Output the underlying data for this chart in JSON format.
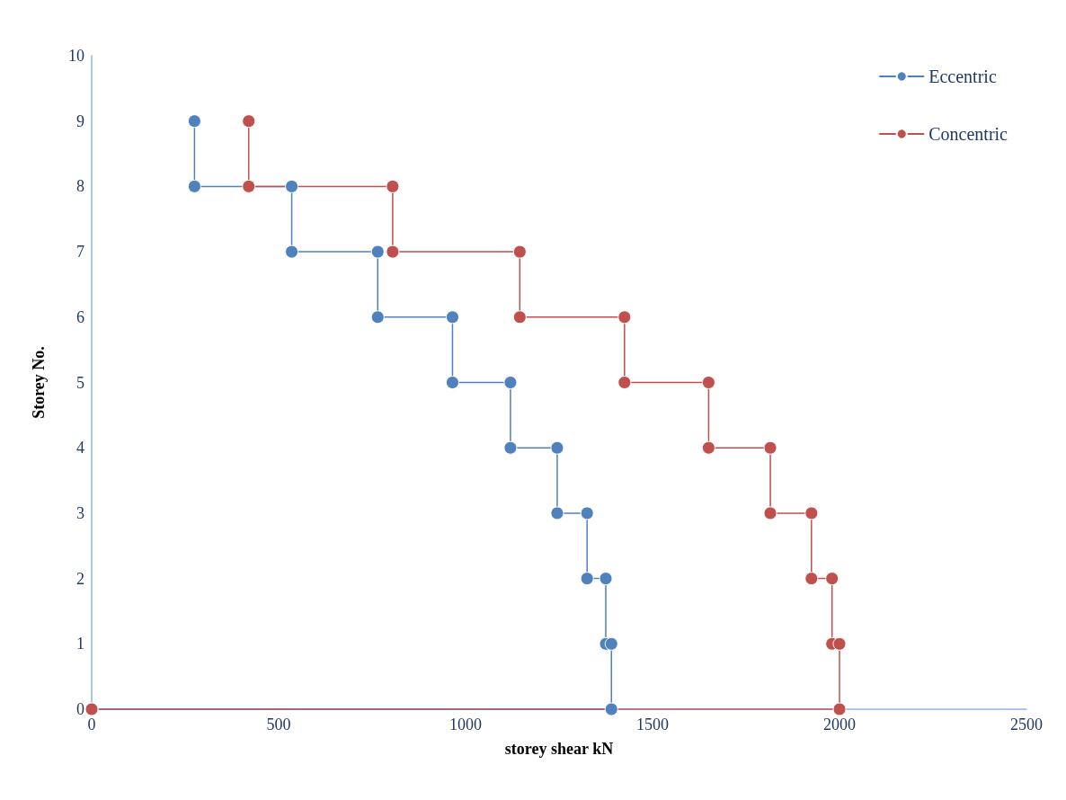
{
  "chart_data": {
    "type": "line",
    "xlabel": "storey shear kN",
    "ylabel": "Storey No.",
    "xlim": [
      0,
      2500
    ],
    "xticks": [
      0,
      500,
      1000,
      1500,
      2000,
      2500
    ],
    "ylim": [
      0,
      10
    ],
    "yticks": [
      0,
      1,
      2,
      3,
      4,
      5,
      6,
      7,
      8,
      9,
      10
    ],
    "grid": false,
    "legend": "top right",
    "marker": "circle",
    "line_style": "solid",
    "series": [
      {
        "name": "Eccentric",
        "color": "#4f81bd",
        "x": [
          275,
          275,
          535,
          535,
          765,
          765,
          965,
          965,
          1120,
          1120,
          1245,
          1245,
          1325,
          1325,
          1375,
          1375,
          1390,
          1390,
          0
        ],
        "values": [
          9,
          8,
          8,
          7,
          7,
          6,
          6,
          5,
          5,
          4,
          4,
          3,
          3,
          2,
          2,
          1,
          1,
          0,
          0
        ]
      },
      {
        "name": "Concentric",
        "color": "#c0504d",
        "x": [
          420,
          420,
          805,
          805,
          1145,
          1145,
          1425,
          1425,
          1650,
          1650,
          1815,
          1815,
          1925,
          1925,
          1980,
          1980,
          2000,
          2000,
          0
        ],
        "values": [
          9,
          8,
          8,
          7,
          7,
          6,
          6,
          5,
          5,
          4,
          4,
          3,
          3,
          2,
          2,
          1,
          1,
          0,
          0
        ]
      }
    ]
  }
}
